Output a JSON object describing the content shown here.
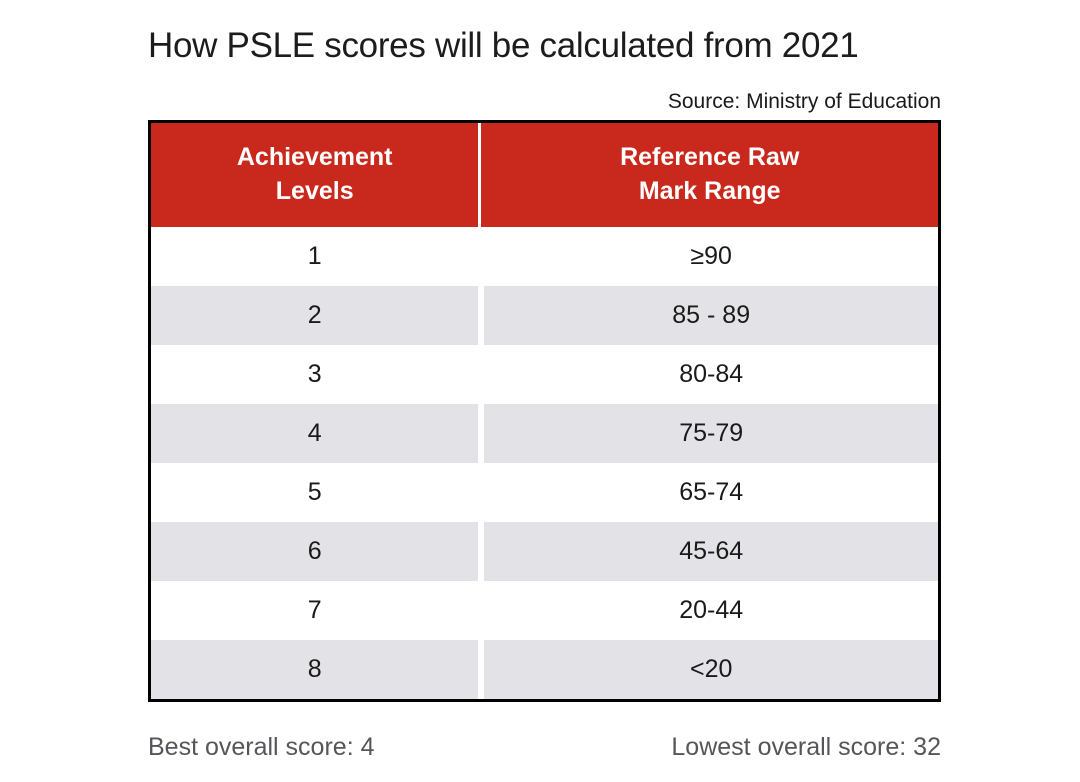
{
  "page": {
    "title": "How PSLE scores will be calculated from 2021",
    "source": "Source: Ministry of Education"
  },
  "table": {
    "columns": [
      {
        "label": "Achievement\nLevels"
      },
      {
        "label": "Reference Raw\nMark Range"
      }
    ],
    "rows": [
      {
        "level": "1",
        "range": "≥90"
      },
      {
        "level": "2",
        "range": "85 - 89"
      },
      {
        "level": "3",
        "range": "80-84"
      },
      {
        "level": "4",
        "range": "75-79"
      },
      {
        "level": "5",
        "range": "65-74"
      },
      {
        "level": "6",
        "range": "45-64"
      },
      {
        "level": "7",
        "range": "20-44"
      },
      {
        "level": "8",
        "range": "<20"
      }
    ]
  },
  "footer": {
    "best_score": "Best overall score: 4",
    "lowest_score": "Lowest overall score: 32"
  },
  "colors": {
    "header_red": "#c9281c",
    "row_alt_grey": "#e3e3e7",
    "border_black": "#000000",
    "footer_grey": "#55565a",
    "header_text": "#ffffff",
    "body_text": "#1a1a1a"
  },
  "chart_data": {
    "type": "table",
    "title": "How PSLE scores will be calculated from 2021",
    "source": "Source: Ministry of Education",
    "columns": [
      "Achievement Levels",
      "Reference Raw Mark Range"
    ],
    "rows": [
      [
        "1",
        "≥90"
      ],
      [
        "2",
        "85 - 89"
      ],
      [
        "3",
        "80-84"
      ],
      [
        "4",
        "75-79"
      ],
      [
        "5",
        "65-74"
      ],
      [
        "6",
        "45-64"
      ],
      [
        "7",
        "20-44"
      ],
      [
        "8",
        "<20"
      ]
    ],
    "annotations": [
      "Best overall score: 4",
      "Lowest overall score: 32"
    ],
    "layout": {
      "zebra_striping": true,
      "header_background": "#c9281c"
    }
  }
}
